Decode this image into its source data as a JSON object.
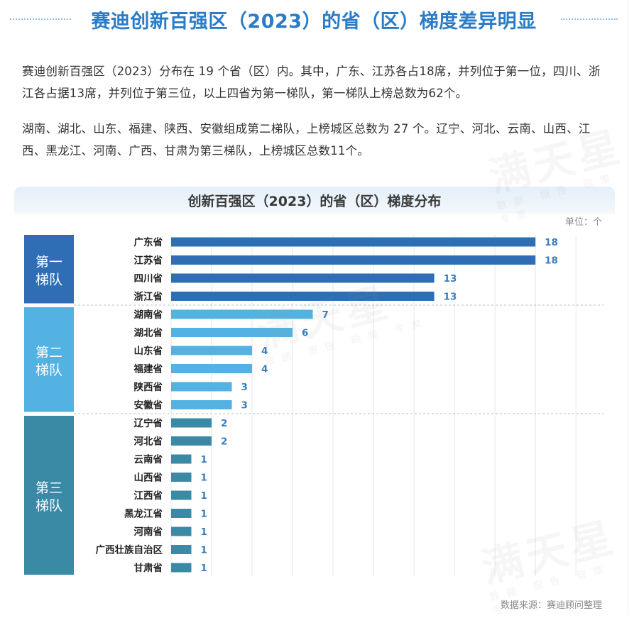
{
  "header": {
    "title": "赛迪创新百强区（2023）的省（区）梯度差异明显"
  },
  "intro": {
    "paragraph1": "赛迪创新百强区（2023）分布在 19 个省（区）内。其中，广东、江苏各占18席，并列位于第一位，四川、浙江各占据13席，并列位于第三位，以上四省为第一梯队，第一梯队上榜总数为62个。",
    "paragraph2": "湖南、湖北、山东、福建、陕西、安徽组成第二梯队，上榜城区总数为 27 个。辽宁、河北、云南、山西、江西、黑龙江、河南、广西、甘肃为第三梯队，上榜城区总数11个。"
  },
  "watermark": {
    "text": "满天星",
    "subtext": "数据 报告 政策 专家"
  },
  "chart": {
    "unit_label": "单位：个",
    "source_label": "数据来源：赛迪顾问整理"
  },
  "chart_data": {
    "type": "bar",
    "orientation": "horizontal",
    "title": "创新百强区（2023）的省（区）梯度分布",
    "xlim": [
      0,
      20
    ],
    "grid": true,
    "categories": [
      "广东省",
      "江苏省",
      "四川省",
      "浙江省",
      "湖南省",
      "湖北省",
      "山东省",
      "福建省",
      "陕西省",
      "安徽省",
      "辽宁省",
      "河北省",
      "云南省",
      "山西省",
      "江西省",
      "黑龙江省",
      "河南省",
      "广西壮族自治区",
      "甘肃省"
    ],
    "values": [
      18,
      18,
      13,
      13,
      7,
      6,
      4,
      4,
      3,
      3,
      2,
      2,
      1,
      1,
      1,
      1,
      1,
      1,
      1
    ],
    "tiers": [
      {
        "label": "第一梯队",
        "line1": "第一",
        "line2": "梯队",
        "count": 4,
        "color": "#2f6db5"
      },
      {
        "label": "第二梯队",
        "line1": "第二",
        "line2": "梯队",
        "count": 6,
        "color": "#53b2e2"
      },
      {
        "label": "第三梯队",
        "line1": "第三",
        "line2": "梯队",
        "count": 9,
        "color": "#3a8aa6"
      }
    ],
    "colors": {
      "value_text": "#3a7dbf",
      "grid": "#e3e8ee",
      "separator": "#b7c2cc"
    }
  }
}
